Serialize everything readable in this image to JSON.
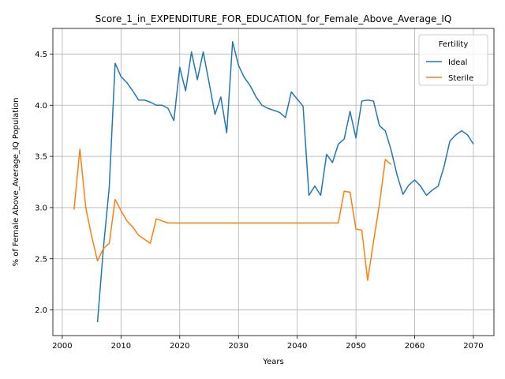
{
  "chart_data": {
    "type": "line",
    "title": "Score_1_in_EXPENDITURE_FOR_EDUCATION_for_Female_Above_Average_IQ",
    "xlabel": "Years",
    "ylabel": "% of Female Above_Average_IQ Population",
    "xlim": [
      1998.4,
      2073.5
    ],
    "ylim": [
      1.75,
      4.75
    ],
    "xticks": [
      2000,
      2010,
      2020,
      2030,
      2040,
      2050,
      2060,
      2070
    ],
    "yticks": [
      2.0,
      2.5,
      3.0,
      3.5,
      4.0,
      4.5
    ],
    "xtick_labels": [
      "2000",
      "2010",
      "2020",
      "2030",
      "2040",
      "2050",
      "2060",
      "2070"
    ],
    "ytick_labels": [
      "2.0",
      "2.5",
      "3.0",
      "3.5",
      "4.0",
      "4.5"
    ],
    "grid": true,
    "legend": {
      "title": "Fertility",
      "placement": "top-right"
    },
    "series": [
      {
        "name": "Ideal",
        "color": "#1f77b4",
        "points": [
          [
            2006,
            1.88
          ],
          [
            2007,
            2.6
          ],
          [
            2008,
            3.2
          ],
          [
            2009,
            4.41
          ],
          [
            2010,
            4.28
          ],
          [
            2011,
            4.22
          ],
          [
            2012,
            4.14
          ],
          [
            2013,
            4.05
          ],
          [
            2014,
            4.05
          ],
          [
            2015,
            4.03
          ],
          [
            2016,
            4.0
          ],
          [
            2017,
            4.0
          ],
          [
            2018,
            3.97
          ],
          [
            2019,
            3.85
          ],
          [
            2020,
            4.37
          ],
          [
            2021,
            4.14
          ],
          [
            2022,
            4.52
          ],
          [
            2023,
            4.25
          ],
          [
            2024,
            4.52
          ],
          [
            2025,
            4.22
          ],
          [
            2026,
            3.91
          ],
          [
            2027,
            4.08
          ],
          [
            2028,
            3.73
          ],
          [
            2029,
            4.62
          ],
          [
            2030,
            4.39
          ],
          [
            2031,
            4.27
          ],
          [
            2032,
            4.19
          ],
          [
            2033,
            4.08
          ],
          [
            2034,
            4.0
          ],
          [
            2035,
            3.97
          ],
          [
            2036,
            3.95
          ],
          [
            2037,
            3.93
          ],
          [
            2038,
            3.88
          ],
          [
            2039,
            4.13
          ],
          [
            2040,
            4.06
          ],
          [
            2041,
            3.99
          ],
          [
            2042,
            3.12
          ],
          [
            2043,
            3.21
          ],
          [
            2044,
            3.12
          ],
          [
            2045,
            3.52
          ],
          [
            2046,
            3.44
          ],
          [
            2047,
            3.62
          ],
          [
            2048,
            3.67
          ],
          [
            2049,
            3.94
          ],
          [
            2050,
            3.68
          ],
          [
            2051,
            4.04
          ],
          [
            2052,
            4.05
          ],
          [
            2053,
            4.04
          ],
          [
            2054,
            3.8
          ],
          [
            2055,
            3.75
          ],
          [
            2056,
            3.56
          ],
          [
            2057,
            3.32
          ],
          [
            2058,
            3.13
          ],
          [
            2059,
            3.22
          ],
          [
            2060,
            3.27
          ],
          [
            2061,
            3.21
          ],
          [
            2062,
            3.12
          ],
          [
            2063,
            3.17
          ],
          [
            2064,
            3.21
          ],
          [
            2065,
            3.4
          ],
          [
            2066,
            3.65
          ],
          [
            2067,
            3.71
          ],
          [
            2068,
            3.75
          ],
          [
            2069,
            3.71
          ],
          [
            2070,
            3.62
          ]
        ]
      },
      {
        "name": "Sterile",
        "color": "#ff7f0e",
        "points": [
          [
            2002,
            2.98
          ],
          [
            2003,
            3.57
          ],
          [
            2004,
            3.0
          ],
          [
            2005,
            2.72
          ],
          [
            2006,
            2.48
          ],
          [
            2007,
            2.6
          ],
          [
            2008,
            2.65
          ],
          [
            2009,
            3.08
          ],
          [
            2010,
            2.97
          ],
          [
            2011,
            2.87
          ],
          [
            2012,
            2.81
          ],
          [
            2013,
            2.73
          ],
          [
            2014,
            2.69
          ],
          [
            2015,
            2.65
          ],
          [
            2016,
            2.89
          ],
          [
            2017,
            2.87
          ],
          [
            2018,
            2.85
          ],
          [
            2019,
            2.85
          ],
          [
            2020,
            2.85
          ],
          [
            2030,
            2.85
          ],
          [
            2040,
            2.85
          ],
          [
            2047,
            2.85
          ],
          [
            2048,
            3.16
          ],
          [
            2049,
            3.15
          ],
          [
            2050,
            2.79
          ],
          [
            2051,
            2.78
          ],
          [
            2052,
            2.29
          ],
          [
            2053,
            2.67
          ],
          [
            2054,
            3.03
          ],
          [
            2055,
            3.47
          ],
          [
            2056,
            3.42
          ]
        ]
      }
    ]
  }
}
